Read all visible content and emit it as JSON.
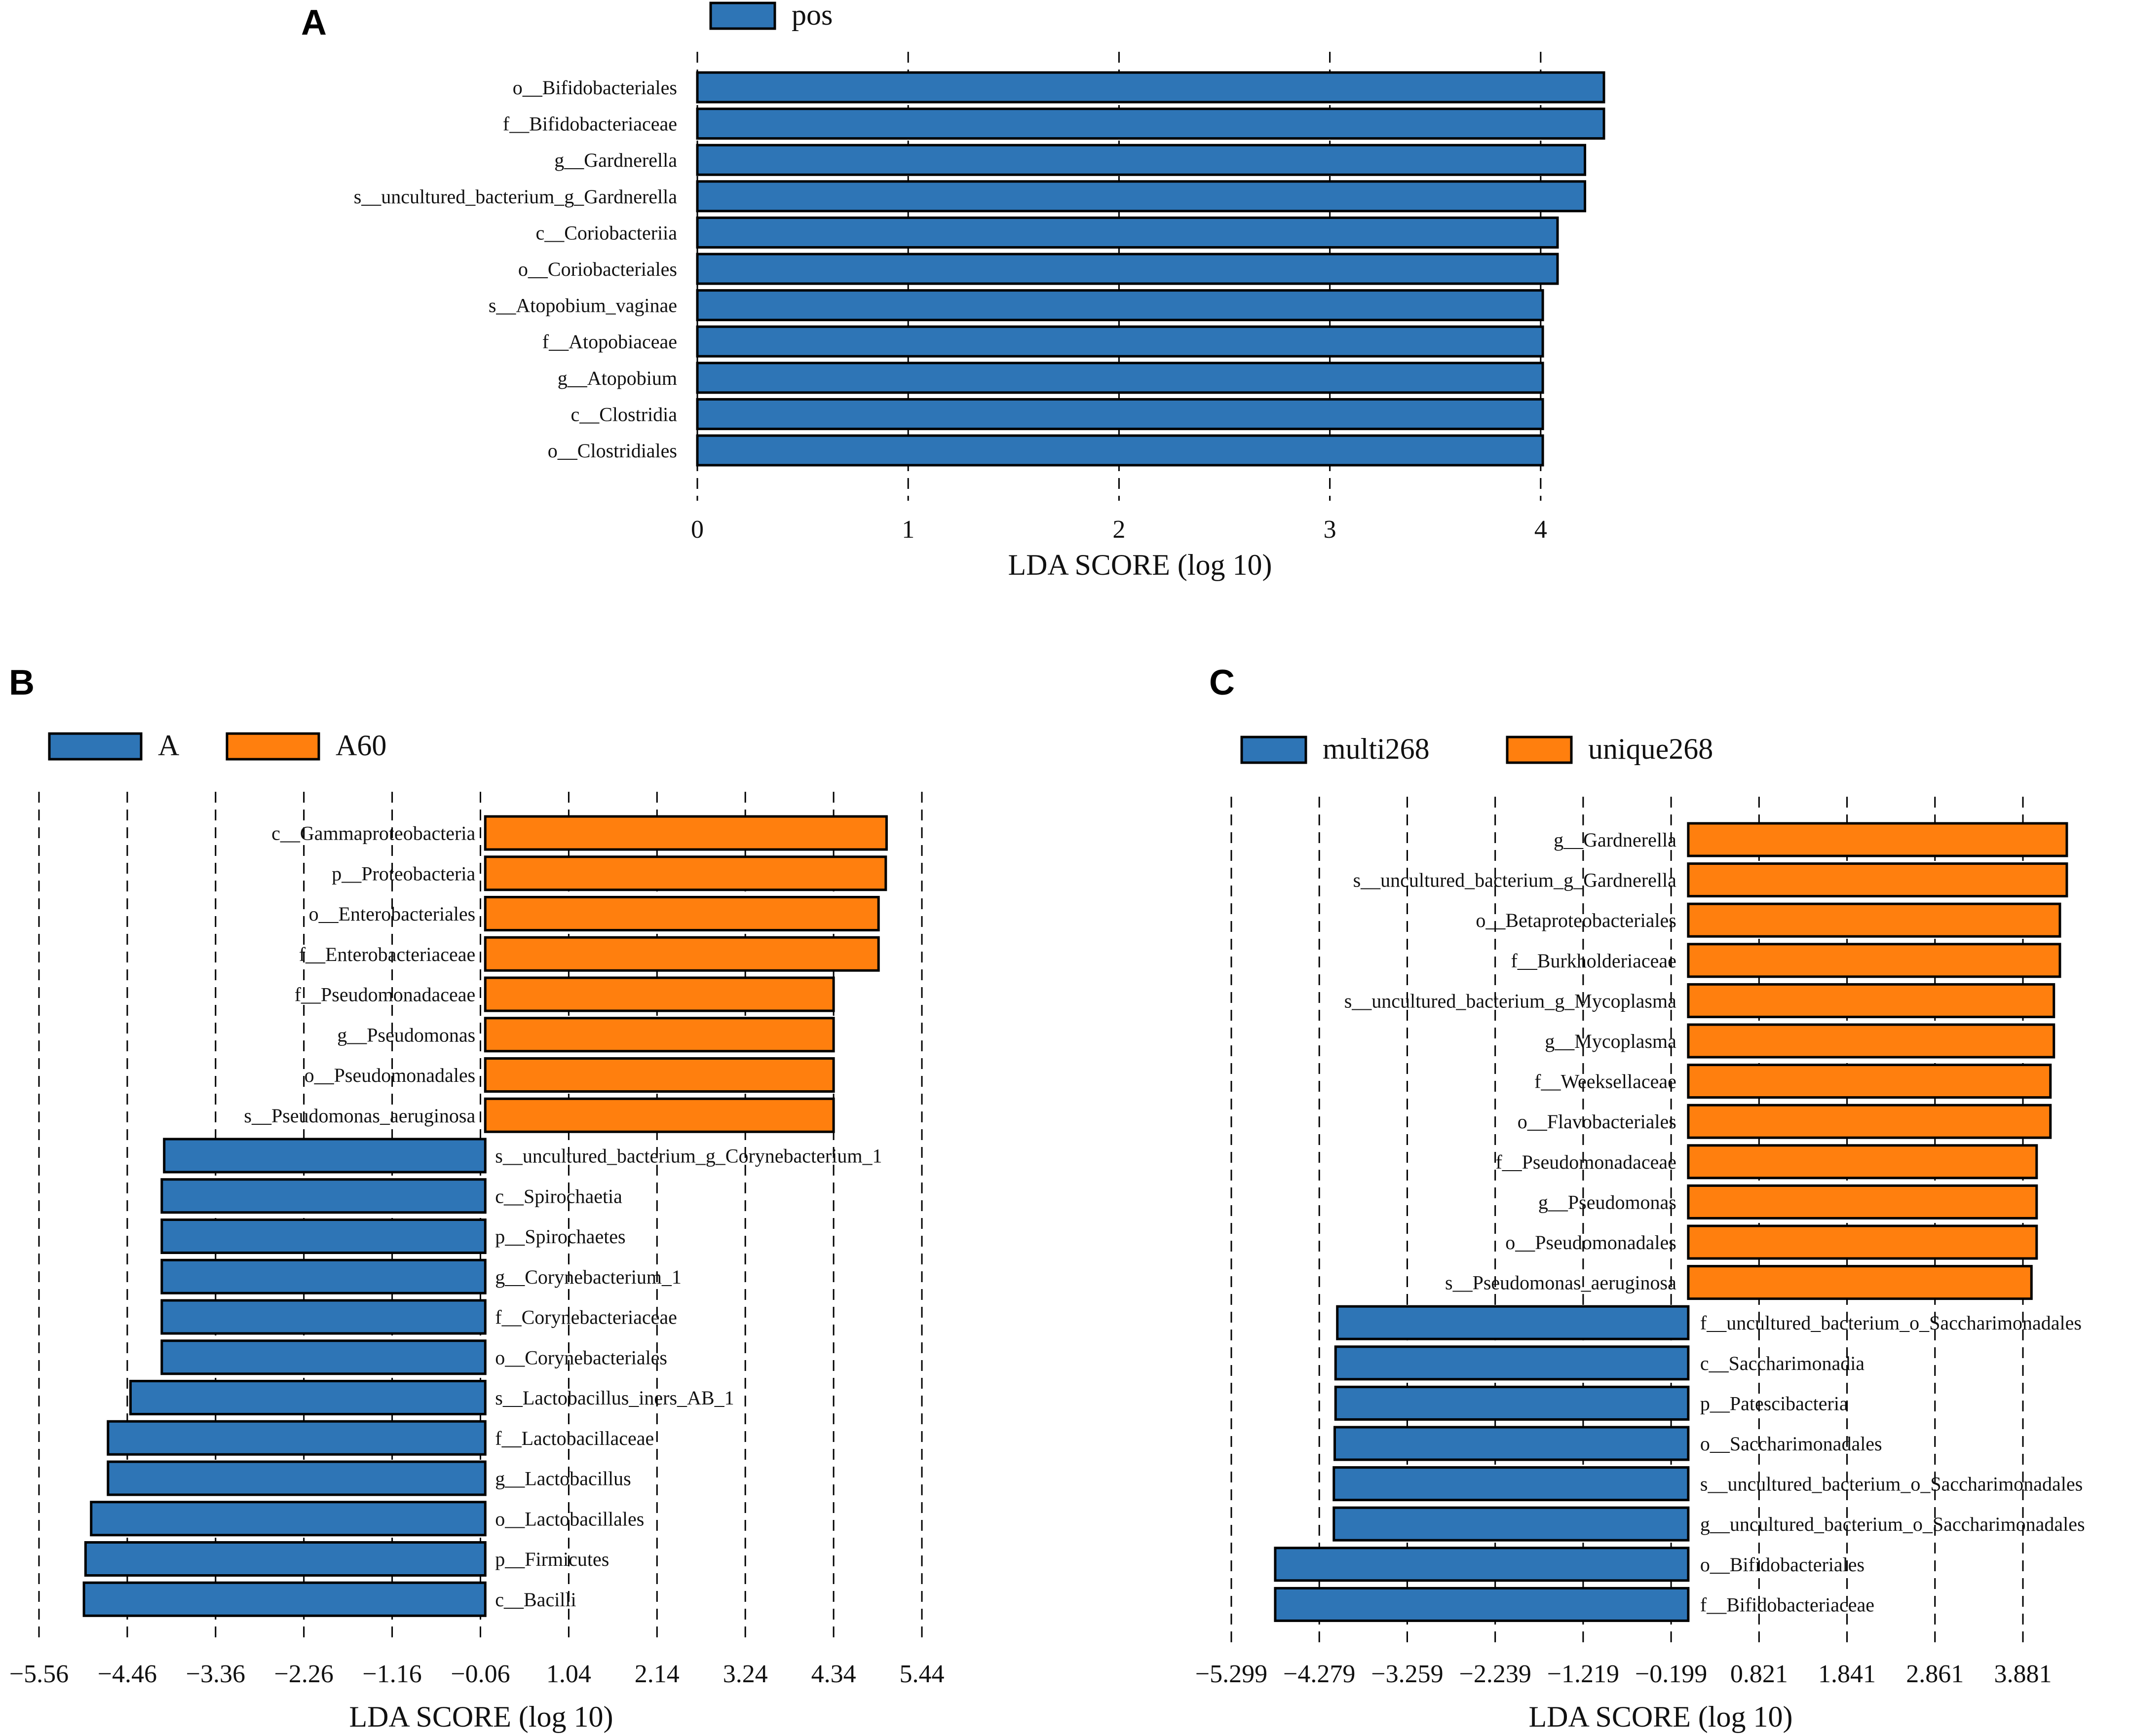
{
  "chart_data": [
    {
      "panel": "A",
      "type": "bar",
      "orientation": "horizontal",
      "legend": [
        {
          "name": "pos",
          "color": "#2e75b6"
        }
      ],
      "xlabel": "LDA SCORE (log 10)",
      "xlim": [
        0,
        4.3
      ],
      "xticks": [
        0,
        1,
        2,
        3,
        4
      ],
      "xtick_labels": [
        "0",
        "1",
        "2",
        "3",
        "4"
      ],
      "bars": [
        {
          "label": "o__Bifidobacteriales",
          "value": 4.3,
          "group": "pos"
        },
        {
          "label": "f__Bifidobacteriaceae",
          "value": 4.3,
          "group": "pos"
        },
        {
          "label": "g__Gardnerella",
          "value": 4.21,
          "group": "pos"
        },
        {
          "label": "s__uncultured_bacterium_g_Gardnerella",
          "value": 4.21,
          "group": "pos"
        },
        {
          "label": "c__Coriobacteriia",
          "value": 4.08,
          "group": "pos"
        },
        {
          "label": "o__Coriobacteriales",
          "value": 4.08,
          "group": "pos"
        },
        {
          "label": "s__Atopobium_vaginae",
          "value": 4.01,
          "group": "pos"
        },
        {
          "label": "f__Atopobiaceae",
          "value": 4.01,
          "group": "pos"
        },
        {
          "label": "g__Atopobium",
          "value": 4.01,
          "group": "pos"
        },
        {
          "label": "c__Clostridia",
          "value": 4.01,
          "group": "pos"
        },
        {
          "label": "o__Clostridiales",
          "value": 4.01,
          "group": "pos"
        }
      ]
    },
    {
      "panel": "B",
      "type": "bar",
      "orientation": "horizontal",
      "legend": [
        {
          "name": "A",
          "color": "#2e75b6"
        },
        {
          "name": "A60",
          "color": "#ff7f0e"
        }
      ],
      "xlabel": "LDA SCORE (log 10)",
      "xlim": [
        -5.56,
        5.44
      ],
      "xticks": [
        -5.56,
        -4.46,
        -3.36,
        -2.26,
        -1.16,
        -0.06,
        1.04,
        2.14,
        3.24,
        4.34,
        5.44
      ],
      "xtick_labels": [
        "−5.56",
        "−4.46",
        "−3.36",
        "−2.26",
        "−1.16",
        "−0.06",
        "1.04",
        "2.14",
        "3.24",
        "4.34",
        "5.44"
      ],
      "bars": [
        {
          "label": "c__Gammaproteobacteria",
          "value": 5.0,
          "group": "A60"
        },
        {
          "label": "p__Proteobacteria",
          "value": 4.99,
          "group": "A60"
        },
        {
          "label": "o__Enterobacteriales",
          "value": 4.9,
          "group": "A60"
        },
        {
          "label": "f__Enterobacteriaceae",
          "value": 4.9,
          "group": "A60"
        },
        {
          "label": "f__Pseudomonadaceae",
          "value": 4.34,
          "group": "A60"
        },
        {
          "label": "g__Pseudomonas",
          "value": 4.34,
          "group": "A60"
        },
        {
          "label": "o__Pseudomonadales",
          "value": 4.34,
          "group": "A60"
        },
        {
          "label": "s__Pseudomonas_aeruginosa",
          "value": 4.34,
          "group": "A60"
        },
        {
          "label": "s__uncultured_bacterium_g_Corynebacterium_1",
          "value": -4.0,
          "group": "A"
        },
        {
          "label": "c__Spirochaetia",
          "value": -4.03,
          "group": "A"
        },
        {
          "label": "p__Spirochaetes",
          "value": -4.03,
          "group": "A"
        },
        {
          "label": "g__Corynebacterium_1",
          "value": -4.03,
          "group": "A"
        },
        {
          "label": "f__Corynebacteriaceae",
          "value": -4.03,
          "group": "A"
        },
        {
          "label": "o__Corynebacteriales",
          "value": -4.03,
          "group": "A"
        },
        {
          "label": "s__Lactobacillus_iners_AB_1",
          "value": -4.42,
          "group": "A"
        },
        {
          "label": "f__Lactobacillaceae",
          "value": -4.7,
          "group": "A"
        },
        {
          "label": "g__Lactobacillus",
          "value": -4.7,
          "group": "A"
        },
        {
          "label": "o__Lactobacillales",
          "value": -4.91,
          "group": "A"
        },
        {
          "label": "p__Firmicutes",
          "value": -4.98,
          "group": "A"
        },
        {
          "label": "c__Bacilli",
          "value": -5.0,
          "group": "A"
        }
      ]
    },
    {
      "panel": "C",
      "type": "bar",
      "orientation": "horizontal",
      "legend": [
        {
          "name": "multi268",
          "color": "#2e75b6"
        },
        {
          "name": "unique268",
          "color": "#ff7f0e"
        }
      ],
      "xlabel": "LDA SCORE (log 10)",
      "xlim": [
        -5.299,
        4.4
      ],
      "xticks": [
        -5.299,
        -4.279,
        -3.259,
        -2.239,
        -1.219,
        -0.199,
        0.821,
        1.841,
        2.861,
        3.881
      ],
      "xtick_labels": [
        "−5.299",
        "−4.279",
        "−3.259",
        "−2.239",
        "−1.219",
        "−0.199",
        "0.821",
        "1.841",
        "2.861",
        "3.881"
      ],
      "bars": [
        {
          "label": "g__Gardnerella",
          "value": 4.39,
          "group": "unique268"
        },
        {
          "label": "s__uncultured_bacterium_g_Gardnerella",
          "value": 4.39,
          "group": "unique268"
        },
        {
          "label": "o__Betaproteobacteriales",
          "value": 4.31,
          "group": "unique268"
        },
        {
          "label": "f__Burkholderiaceae",
          "value": 4.31,
          "group": "unique268"
        },
        {
          "label": "s__uncultured_bacterium_g_Mycoplasma",
          "value": 4.24,
          "group": "unique268"
        },
        {
          "label": "g__Mycoplasma",
          "value": 4.24,
          "group": "unique268"
        },
        {
          "label": "f__Weeksellaceae",
          "value": 4.2,
          "group": "unique268"
        },
        {
          "label": "o__Flavobacteriales",
          "value": 4.2,
          "group": "unique268"
        },
        {
          "label": "f__Pseudomonadaceae",
          "value": 4.04,
          "group": "unique268"
        },
        {
          "label": "g__Pseudomonas",
          "value": 4.04,
          "group": "unique268"
        },
        {
          "label": "o__Pseudomonadales",
          "value": 4.04,
          "group": "unique268"
        },
        {
          "label": "s__Pseudomonas_aeruginosa",
          "value": 3.98,
          "group": "unique268"
        },
        {
          "label": "f__uncultured_bacterium_o_Saccharimonadales",
          "value": -4.07,
          "group": "multi268"
        },
        {
          "label": "c__Saccharimonadia",
          "value": -4.09,
          "group": "multi268"
        },
        {
          "label": "p__Patescibacteria",
          "value": -4.09,
          "group": "multi268"
        },
        {
          "label": "o__Saccharimonadales",
          "value": -4.1,
          "group": "multi268"
        },
        {
          "label": "s__uncultured_bacterium_o_Saccharimonadales",
          "value": -4.11,
          "group": "multi268"
        },
        {
          "label": "g__uncultured_bacterium_o_Saccharimonadales",
          "value": -4.11,
          "group": "multi268"
        },
        {
          "label": "o__Bifidobacteriales",
          "value": -4.79,
          "group": "multi268"
        },
        {
          "label": "f__Bifidobacteriaceae",
          "value": -4.79,
          "group": "multi268"
        }
      ]
    }
  ]
}
